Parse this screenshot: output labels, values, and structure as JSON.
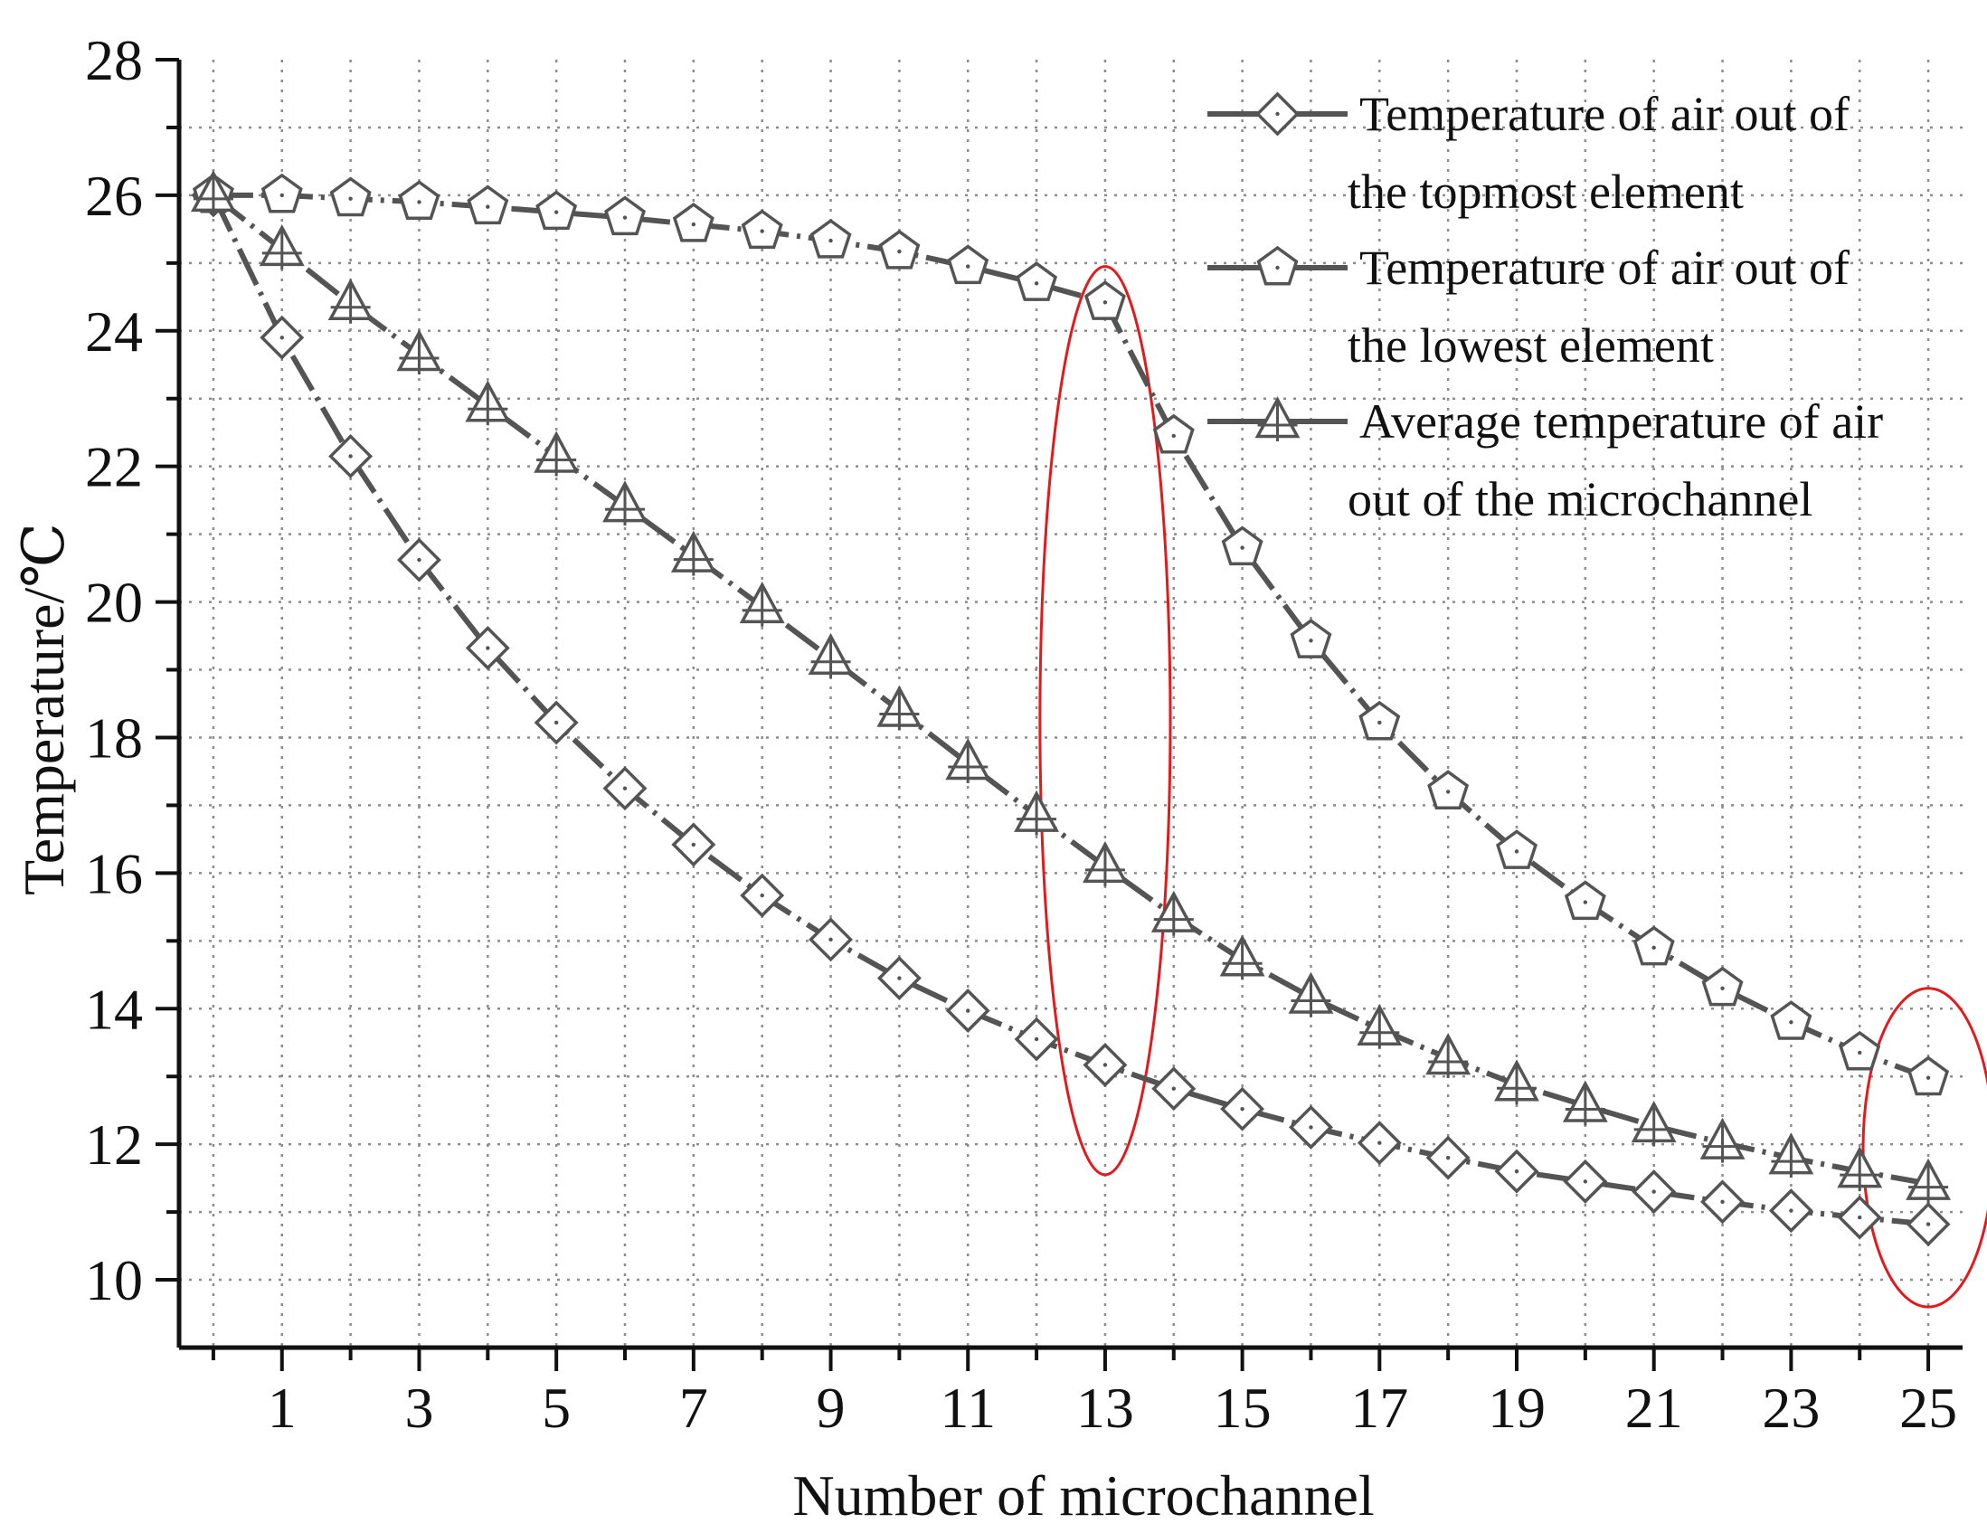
{
  "chart_data": {
    "type": "line",
    "title": "",
    "xlabel": "Number of microchannel",
    "ylabel": "Temperature/℃",
    "xlim": [
      -0.5,
      25.5
    ],
    "ylim": [
      9,
      28
    ],
    "x_ticks": [
      "1",
      "3",
      "5",
      "7",
      "9",
      "11",
      "13",
      "15",
      "17",
      "19",
      "21",
      "23",
      "25"
    ],
    "y_ticks": [
      "10",
      "12",
      "14",
      "16",
      "18",
      "20",
      "22",
      "24",
      "26",
      "28"
    ],
    "grid": true,
    "legend_position": "top-right",
    "x": [
      0,
      1,
      2,
      3,
      4,
      5,
      6,
      7,
      8,
      9,
      10,
      11,
      12,
      13,
      14,
      15,
      16,
      17,
      18,
      19,
      20,
      21,
      22,
      23,
      24,
      25
    ],
    "series": [
      {
        "name": "Temperature of air out of the topmost element",
        "legend_lines": [
          "Temperature of air out of",
          "the topmost element"
        ],
        "marker": "diamond",
        "values": [
          26.0,
          23.9,
          22.15,
          20.62,
          19.32,
          18.22,
          17.25,
          16.42,
          15.67,
          15.02,
          14.45,
          13.97,
          13.55,
          13.17,
          12.82,
          12.52,
          12.25,
          12.02,
          11.8,
          11.6,
          11.45,
          11.3,
          11.15,
          11.02,
          10.92,
          10.82
        ]
      },
      {
        "name": "Temperature of air out of the lowest element",
        "legend_lines": [
          "Temperature of air out of",
          "the lowest element"
        ],
        "marker": "pentagon",
        "values": [
          26.0,
          26.0,
          25.95,
          25.9,
          25.83,
          25.75,
          25.67,
          25.57,
          25.47,
          25.33,
          25.17,
          24.95,
          24.7,
          24.42,
          22.45,
          20.8,
          19.43,
          18.22,
          17.2,
          16.32,
          15.57,
          14.9,
          14.3,
          13.8,
          13.35,
          12.98
        ]
      },
      {
        "name": "Average temperature of air out of the microchannel",
        "legend_lines": [
          "Average temperature of air",
          "out of the microchannel"
        ],
        "marker": "triangle",
        "values": [
          26.0,
          25.2,
          24.4,
          23.65,
          22.9,
          22.15,
          21.42,
          20.68,
          19.93,
          19.17,
          18.4,
          17.62,
          16.85,
          16.1,
          15.37,
          14.72,
          14.17,
          13.7,
          13.27,
          12.88,
          12.57,
          12.27,
          12.02,
          11.8,
          11.6,
          11.42
        ]
      }
    ],
    "annotations": [
      {
        "type": "ellipse",
        "color": "#e31a1c",
        "x_center": 13,
        "y_center": 18.25,
        "x_radius": 0.95,
        "y_radius": 6.7
      },
      {
        "type": "ellipse",
        "color": "#e31a1c",
        "x_center": 25,
        "y_center": 11.95,
        "x_radius": 0.95,
        "y_radius": 2.35
      }
    ],
    "colors": {
      "series": "#545454",
      "marker_fill": "#ffffff",
      "grid": "#8c8c8c",
      "axis": "#111111"
    }
  }
}
